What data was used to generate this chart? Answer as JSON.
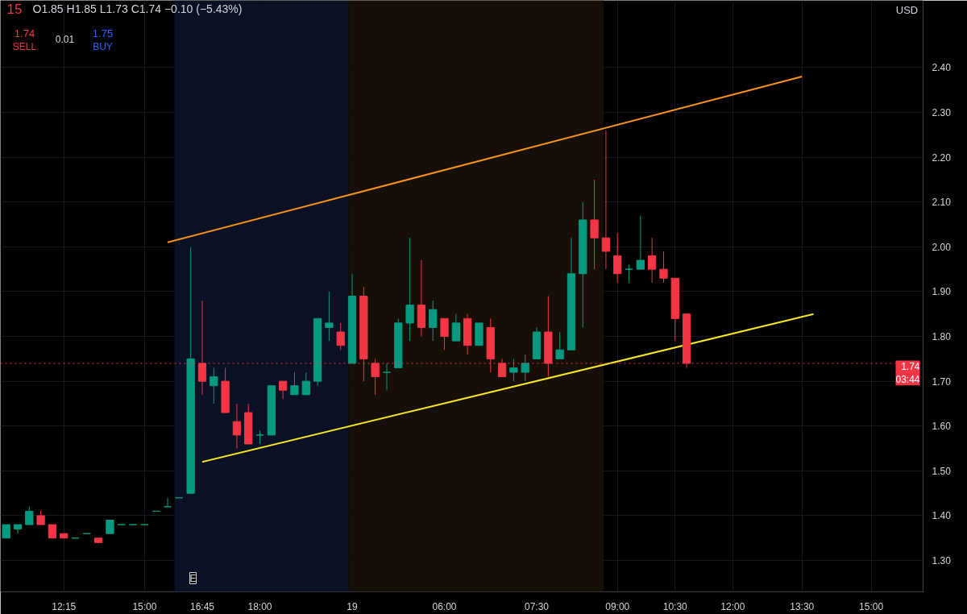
{
  "chart_data": {
    "type": "candlestick",
    "title": "15",
    "categories": [
      null,
      null,
      null,
      null,
      null,
      "12:15",
      null,
      null,
      null,
      null,
      null,
      null,
      "15:00",
      null,
      null,
      null,
      null,
      "16:45",
      null,
      null,
      null,
      null,
      "18:00",
      null,
      null,
      null,
      null,
      null,
      null,
      null,
      "19",
      null,
      null,
      null,
      null,
      null,
      null,
      null,
      "06:00",
      null,
      null,
      null,
      null,
      null,
      null,
      null,
      "07:30",
      null,
      null,
      null,
      null,
      null,
      null,
      "09:00",
      null,
      null,
      null,
      null,
      "10:30",
      null,
      null,
      null,
      null,
      "12:00",
      null,
      null,
      null,
      null,
      null,
      "13:30",
      null,
      null,
      null,
      null,
      null,
      "15:00",
      null,
      null,
      null,
      null
    ],
    "ohlc": [
      [
        1.35,
        1.38,
        1.35,
        1.38
      ],
      [
        1.37,
        1.38,
        1.36,
        1.38
      ],
      [
        1.38,
        1.42,
        1.38,
        1.41
      ],
      [
        1.4,
        1.41,
        1.38,
        1.38
      ],
      [
        1.38,
        1.38,
        1.35,
        1.35
      ],
      [
        1.36,
        1.36,
        1.35,
        1.35
      ],
      [
        1.35,
        1.35,
        1.35,
        1.35
      ],
      [
        1.36,
        1.36,
        1.36,
        1.36
      ],
      [
        1.35,
        1.35,
        1.34,
        1.34
      ],
      [
        1.36,
        1.39,
        1.36,
        1.39
      ],
      [
        1.38,
        1.38,
        1.38,
        1.38
      ],
      [
        1.38,
        1.38,
        1.38,
        1.38
      ],
      [
        1.38,
        1.38,
        1.38,
        1.38
      ],
      [
        1.41,
        1.41,
        1.41,
        1.41
      ],
      [
        1.42,
        1.44,
        1.42,
        1.42
      ],
      [
        1.44,
        1.44,
        1.44,
        1.44
      ],
      [
        1.45,
        2.0,
        1.45,
        1.75
      ],
      [
        1.74,
        1.88,
        1.67,
        1.7
      ],
      [
        1.69,
        1.73,
        1.65,
        1.71
      ],
      [
        1.7,
        1.73,
        1.63,
        1.63
      ],
      [
        1.61,
        1.65,
        1.55,
        1.58
      ],
      [
        1.63,
        1.65,
        1.56,
        1.56
      ],
      [
        1.58,
        1.59,
        1.56,
        1.58
      ],
      [
        1.58,
        1.69,
        1.58,
        1.69
      ],
      [
        1.7,
        1.7,
        1.66,
        1.68
      ],
      [
        1.67,
        1.72,
        1.67,
        1.69
      ],
      [
        1.67,
        1.72,
        1.67,
        1.7
      ],
      [
        1.7,
        1.84,
        1.69,
        1.84
      ],
      [
        1.82,
        1.9,
        1.79,
        1.83
      ],
      [
        1.81,
        1.83,
        1.77,
        1.78
      ],
      [
        1.74,
        1.94,
        1.74,
        1.89
      ],
      [
        1.89,
        1.91,
        1.7,
        1.75
      ],
      [
        1.74,
        1.75,
        1.67,
        1.71
      ],
      [
        1.72,
        1.74,
        1.68,
        1.72
      ],
      [
        1.73,
        1.84,
        1.73,
        1.83
      ],
      [
        1.83,
        2.02,
        1.79,
        1.87
      ],
      [
        1.87,
        1.97,
        1.8,
        1.82
      ],
      [
        1.82,
        1.88,
        1.79,
        1.86
      ],
      [
        1.84,
        1.84,
        1.77,
        1.8
      ],
      [
        1.79,
        1.85,
        1.79,
        1.83
      ],
      [
        1.84,
        1.85,
        1.76,
        1.78
      ],
      [
        1.78,
        1.83,
        1.78,
        1.83
      ],
      [
        1.82,
        1.84,
        1.72,
        1.75
      ],
      [
        1.74,
        1.75,
        1.71,
        1.71
      ],
      [
        1.72,
        1.75,
        1.7,
        1.73
      ],
      [
        1.72,
        1.76,
        1.7,
        1.74
      ],
      [
        1.75,
        1.82,
        1.75,
        1.81
      ],
      [
        1.81,
        1.89,
        1.71,
        1.74
      ],
      [
        1.75,
        1.81,
        1.75,
        1.77
      ],
      [
        1.77,
        2.02,
        1.77,
        1.94
      ],
      [
        1.94,
        2.1,
        1.82,
        2.06
      ],
      [
        2.06,
        2.15,
        1.95,
        2.02
      ],
      [
        2.02,
        2.26,
        1.95,
        1.99
      ],
      [
        1.98,
        2.03,
        1.92,
        1.94
      ],
      [
        1.95,
        1.96,
        1.92,
        1.95
      ],
      [
        1.95,
        2.07,
        1.95,
        1.97
      ],
      [
        1.98,
        2.02,
        1.92,
        1.95
      ],
      [
        1.95,
        1.99,
        1.92,
        1.93
      ],
      [
        1.93,
        1.93,
        1.79,
        1.84
      ],
      [
        1.85,
        1.85,
        1.73,
        1.74
      ],
      null,
      null,
      null,
      null,
      null,
      null,
      null,
      null,
      null,
      null,
      null,
      null,
      null,
      null,
      null,
      null,
      null,
      null,
      null,
      null
    ],
    "series": [
      {
        "type": "line",
        "color": "#f7931a",
        "values": [
          null,
          null,
          null,
          null,
          null,
          null,
          null,
          null,
          null,
          null,
          null,
          null,
          null,
          null,
          2.01,
          null,
          null,
          null,
          null,
          null,
          null,
          null,
          null,
          null,
          null,
          null,
          null,
          null,
          null,
          null,
          null,
          null,
          null,
          null,
          null,
          null,
          null,
          null,
          null,
          null,
          null,
          null,
          null,
          null,
          null,
          null,
          null,
          null,
          null,
          null,
          null,
          null,
          null,
          null,
          null,
          null,
          null,
          null,
          null,
          null,
          null,
          null,
          null,
          null,
          null,
          null,
          null,
          null,
          null,
          2.38,
          null,
          null,
          null,
          null,
          null,
          null,
          null,
          null,
          null,
          null
        ]
      },
      {
        "type": "line",
        "color": "#f5e626",
        "values": [
          null,
          null,
          null,
          null,
          null,
          null,
          null,
          null,
          null,
          null,
          null,
          null,
          null,
          null,
          null,
          null,
          null,
          1.52,
          null,
          null,
          null,
          null,
          null,
          null,
          null,
          null,
          null,
          null,
          null,
          null,
          null,
          null,
          null,
          null,
          null,
          null,
          null,
          null,
          null,
          null,
          null,
          null,
          null,
          null,
          null,
          null,
          null,
          null,
          null,
          null,
          null,
          null,
          null,
          null,
          null,
          null,
          null,
          null,
          null,
          null,
          null,
          null,
          null,
          null,
          null,
          null,
          null,
          null,
          null,
          null,
          1.85,
          null,
          null,
          null,
          null,
          null,
          null,
          null,
          null,
          null
        ]
      }
    ],
    "ylim": [
      1.23,
      2.55
    ],
    "yticks": [
      {
        "value": 1.3,
        "label": "1.30"
      },
      {
        "value": 1.4,
        "label": "1.40"
      },
      {
        "value": 1.5,
        "label": "1.50"
      },
      {
        "value": 1.6,
        "label": "1.60"
      },
      {
        "value": 1.7,
        "label": "1.70"
      },
      {
        "value": 1.8,
        "label": "1.80"
      },
      {
        "value": 1.9,
        "label": "1.90"
      },
      {
        "value": 2.0,
        "label": "2.00"
      },
      {
        "value": 2.1,
        "label": "2.10"
      },
      {
        "value": 2.2,
        "label": "2.20"
      },
      {
        "value": 2.3,
        "label": "2.30"
      },
      {
        "value": 2.4,
        "label": "2.40"
      }
    ],
    "ref_lines": [
      {
        "axis": "y",
        "value": 1.74,
        "label": "1.74\n03:44",
        "color": "#f23645",
        "line_style": "dotted"
      }
    ],
    "annotations": [
      "O1.85 H1.85 L1.73 C1.74 −0.10 (−5.43%)",
      "1.74",
      "SELL",
      "0.01",
      "1.75",
      "BUY",
      "USD",
      "E"
    ],
    "grid": true
  }
}
